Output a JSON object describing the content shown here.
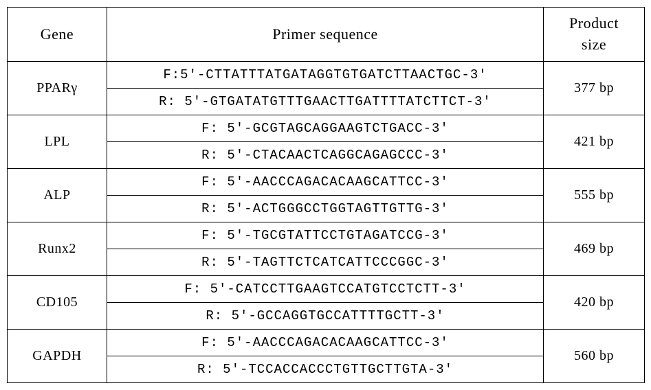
{
  "headers": {
    "gene": "Gene",
    "primer": "Primer sequence",
    "product_size_l1": "Product",
    "product_size_l2": "size"
  },
  "rows": [
    {
      "gene": "PPARγ",
      "forward": "F:5'-CTTATTTATGATAGGTGTGATCTTAACTGC-3'",
      "reverse": "R: 5'-GTGATATGTTTGAACTTGATTTTATCTTCT-3'",
      "size": "377 bp"
    },
    {
      "gene": "LPL",
      "forward": "F: 5'-GCGTAGCAGGAAGTCTGACC-3'",
      "reverse": "R: 5'-CTACAACTCAGGCAGAGCCC-3'",
      "size": "421 bp"
    },
    {
      "gene": "ALP",
      "forward": "F: 5'-AACCCAGACACAAGCATTCC-3'",
      "reverse": "R: 5'-ACTGGGCCTGGTAGTTGTTG-3'",
      "size": "555 bp"
    },
    {
      "gene": "Runx2",
      "forward": "F: 5'-TGCGTATTCCTGTAGATCCG-3'",
      "reverse": "R: 5'-TAGTTCTCATCATTCCCGGC-3'",
      "size": "469 bp"
    },
    {
      "gene": "CD105",
      "forward": "F: 5'-CATCCTTGAAGTCCATGTCCTCTT-3'",
      "reverse": "R: 5'-GCCAGGTGCCATTTTGCTT-3'",
      "size": "420 bp"
    },
    {
      "gene": "GAPDH",
      "forward": "F: 5'-AACCCAGACACAAGCATTCC-3'",
      "reverse": "R: 5'-TCCACCACCCTGTTGCTTGTA-3'",
      "size": "560 bp"
    }
  ],
  "styling": {
    "border_color": "#000000",
    "background_color": "#ffffff",
    "text_color": "#000000",
    "header_fontsize": 22,
    "cell_fontsize": 20,
    "primer_fontsize": 19,
    "border_width": 1.5,
    "col_widths": {
      "gene": 145,
      "primer": 635,
      "size": 147
    }
  }
}
